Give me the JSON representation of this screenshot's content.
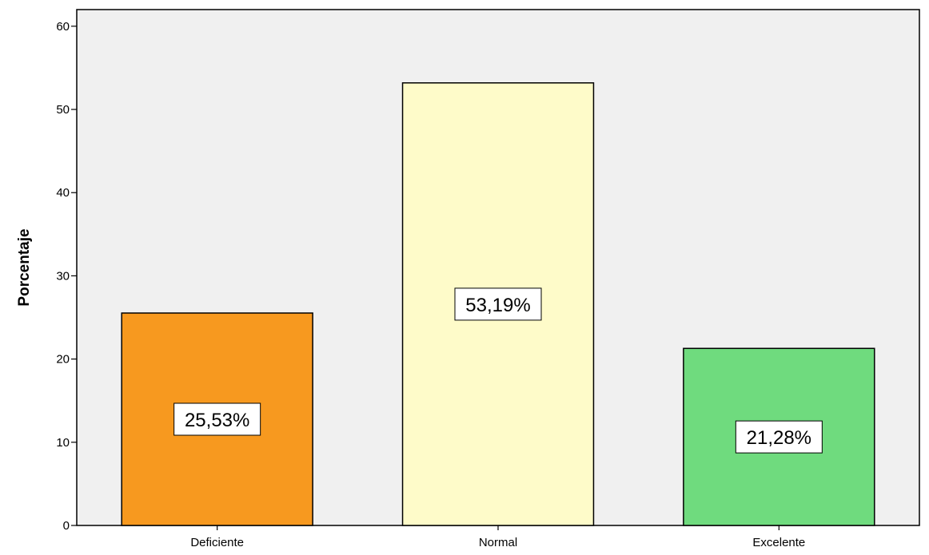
{
  "chart_data": {
    "type": "bar",
    "title": "",
    "xlabel": "",
    "ylabel": "Porcentaje",
    "categories": [
      "Deficiente",
      "Normal",
      "Excelente"
    ],
    "values": [
      25.53,
      53.19,
      21.28
    ],
    "data_labels": [
      "25,53%",
      "53,19%",
      "21,28%"
    ],
    "colors": [
      "#f7991f",
      "#fefbc9",
      "#6fdb7e"
    ],
    "ylim": [
      0,
      62
    ],
    "yticks": [
      0,
      10,
      20,
      30,
      40,
      50,
      60
    ],
    "grid": false,
    "legend": "none",
    "plot_background": "#f0f0f0"
  }
}
